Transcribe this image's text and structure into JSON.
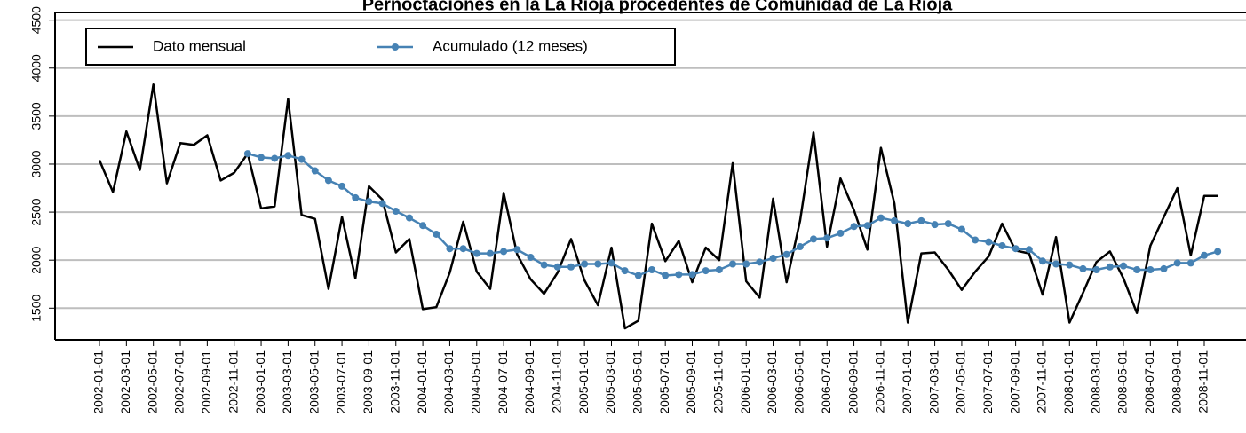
{
  "chart_data": {
    "type": "line",
    "title": "Pernoctaciones en la La Rioja procedentes de Comunidad de La Rioja",
    "categories": [
      "2002-01-01",
      null,
      "2002-03-01",
      null,
      "2002-05-01",
      null,
      "2002-07-01",
      null,
      "2002-09-01",
      null,
      "2002-11-01",
      null,
      "2003-01-01",
      null,
      "2003-03-01",
      null,
      "2003-05-01",
      null,
      "2003-07-01",
      null,
      "2003-09-01",
      null,
      "2003-11-01",
      null,
      "2004-01-01",
      null,
      "2004-03-01",
      null,
      "2004-05-01",
      null,
      "2004-07-01",
      null,
      "2004-09-01",
      null,
      "2004-11-01",
      null,
      "2005-01-01",
      null,
      "2005-03-01",
      null,
      "2005-05-01",
      null,
      "2005-07-01",
      null,
      "2005-09-01",
      null,
      "2005-11-01",
      null,
      "2006-01-01",
      null,
      "2006-03-01",
      null,
      "2006-05-01",
      null,
      "2006-07-01",
      null,
      "2006-09-01",
      null,
      "2006-11-01",
      null,
      "2007-01-01",
      null,
      "2007-03-01",
      null,
      "2007-05-01",
      null,
      "2007-07-01",
      null,
      "2007-09-01",
      null,
      "2007-11-01",
      null,
      "2008-01-01",
      null,
      "2008-03-01",
      null,
      "2008-05-01",
      null,
      "2008-07-01",
      null,
      "2008-09-01",
      null,
      "2008-11-01",
      null
    ],
    "series": [
      {
        "name": "Dato mensual",
        "color": "#000000",
        "markers": false,
        "values": [
          3040,
          2710,
          3340,
          2940,
          3830,
          2800,
          3220,
          3200,
          3300,
          2830,
          2910,
          3110,
          2540,
          2560,
          3680,
          2470,
          2430,
          1700,
          2450,
          1810,
          2770,
          2630,
          2080,
          2220,
          1490,
          1510,
          1870,
          2400,
          1880,
          1700,
          2700,
          2060,
          1800,
          1650,
          1870,
          2220,
          1790,
          1530,
          2130,
          1290,
          1370,
          2380,
          1990,
          2200,
          1770,
          2130,
          2000,
          3010,
          1780,
          1610,
          2640,
          1770,
          2410,
          3330,
          2140,
          2850,
          2520,
          2110,
          3170,
          2590,
          1350,
          2070,
          2080,
          1900,
          1690,
          1880,
          2040,
          2380,
          2100,
          2070,
          1640,
          2240,
          1350,
          1660,
          1980,
          2090,
          1810,
          1450,
          2150,
          2450,
          2750,
          2050,
          2670,
          2670
        ]
      },
      {
        "name": "Acumulado (12 meses)",
        "color": "#4682b4",
        "markers": true,
        "values": [
          null,
          null,
          null,
          null,
          null,
          null,
          null,
          null,
          null,
          null,
          null,
          3110,
          3070,
          3060,
          3090,
          3050,
          2930,
          2830,
          2770,
          2650,
          2610,
          2590,
          2510,
          2440,
          2360,
          2270,
          2120,
          2120,
          2070,
          2070,
          2090,
          2110,
          2030,
          1950,
          1930,
          1930,
          1960,
          1960,
          1970,
          1890,
          1840,
          1900,
          1840,
          1850,
          1850,
          1890,
          1900,
          1960,
          1960,
          1980,
          2020,
          2060,
          2140,
          2220,
          2230,
          2280,
          2350,
          2360,
          2440,
          2410,
          2380,
          2410,
          2370,
          2380,
          2320,
          2210,
          2190,
          2150,
          2120,
          2110,
          1990,
          1960,
          1950,
          1910,
          1900,
          1930,
          1940,
          1900,
          1900,
          1910,
          1970,
          1970,
          2050,
          2090
        ]
      }
    ],
    "ylim": [
      1170,
      4580
    ],
    "yticks": [
      1500,
      2000,
      2500,
      3000,
      3500,
      4000,
      4500
    ],
    "grid": true,
    "legend": "top-left"
  }
}
